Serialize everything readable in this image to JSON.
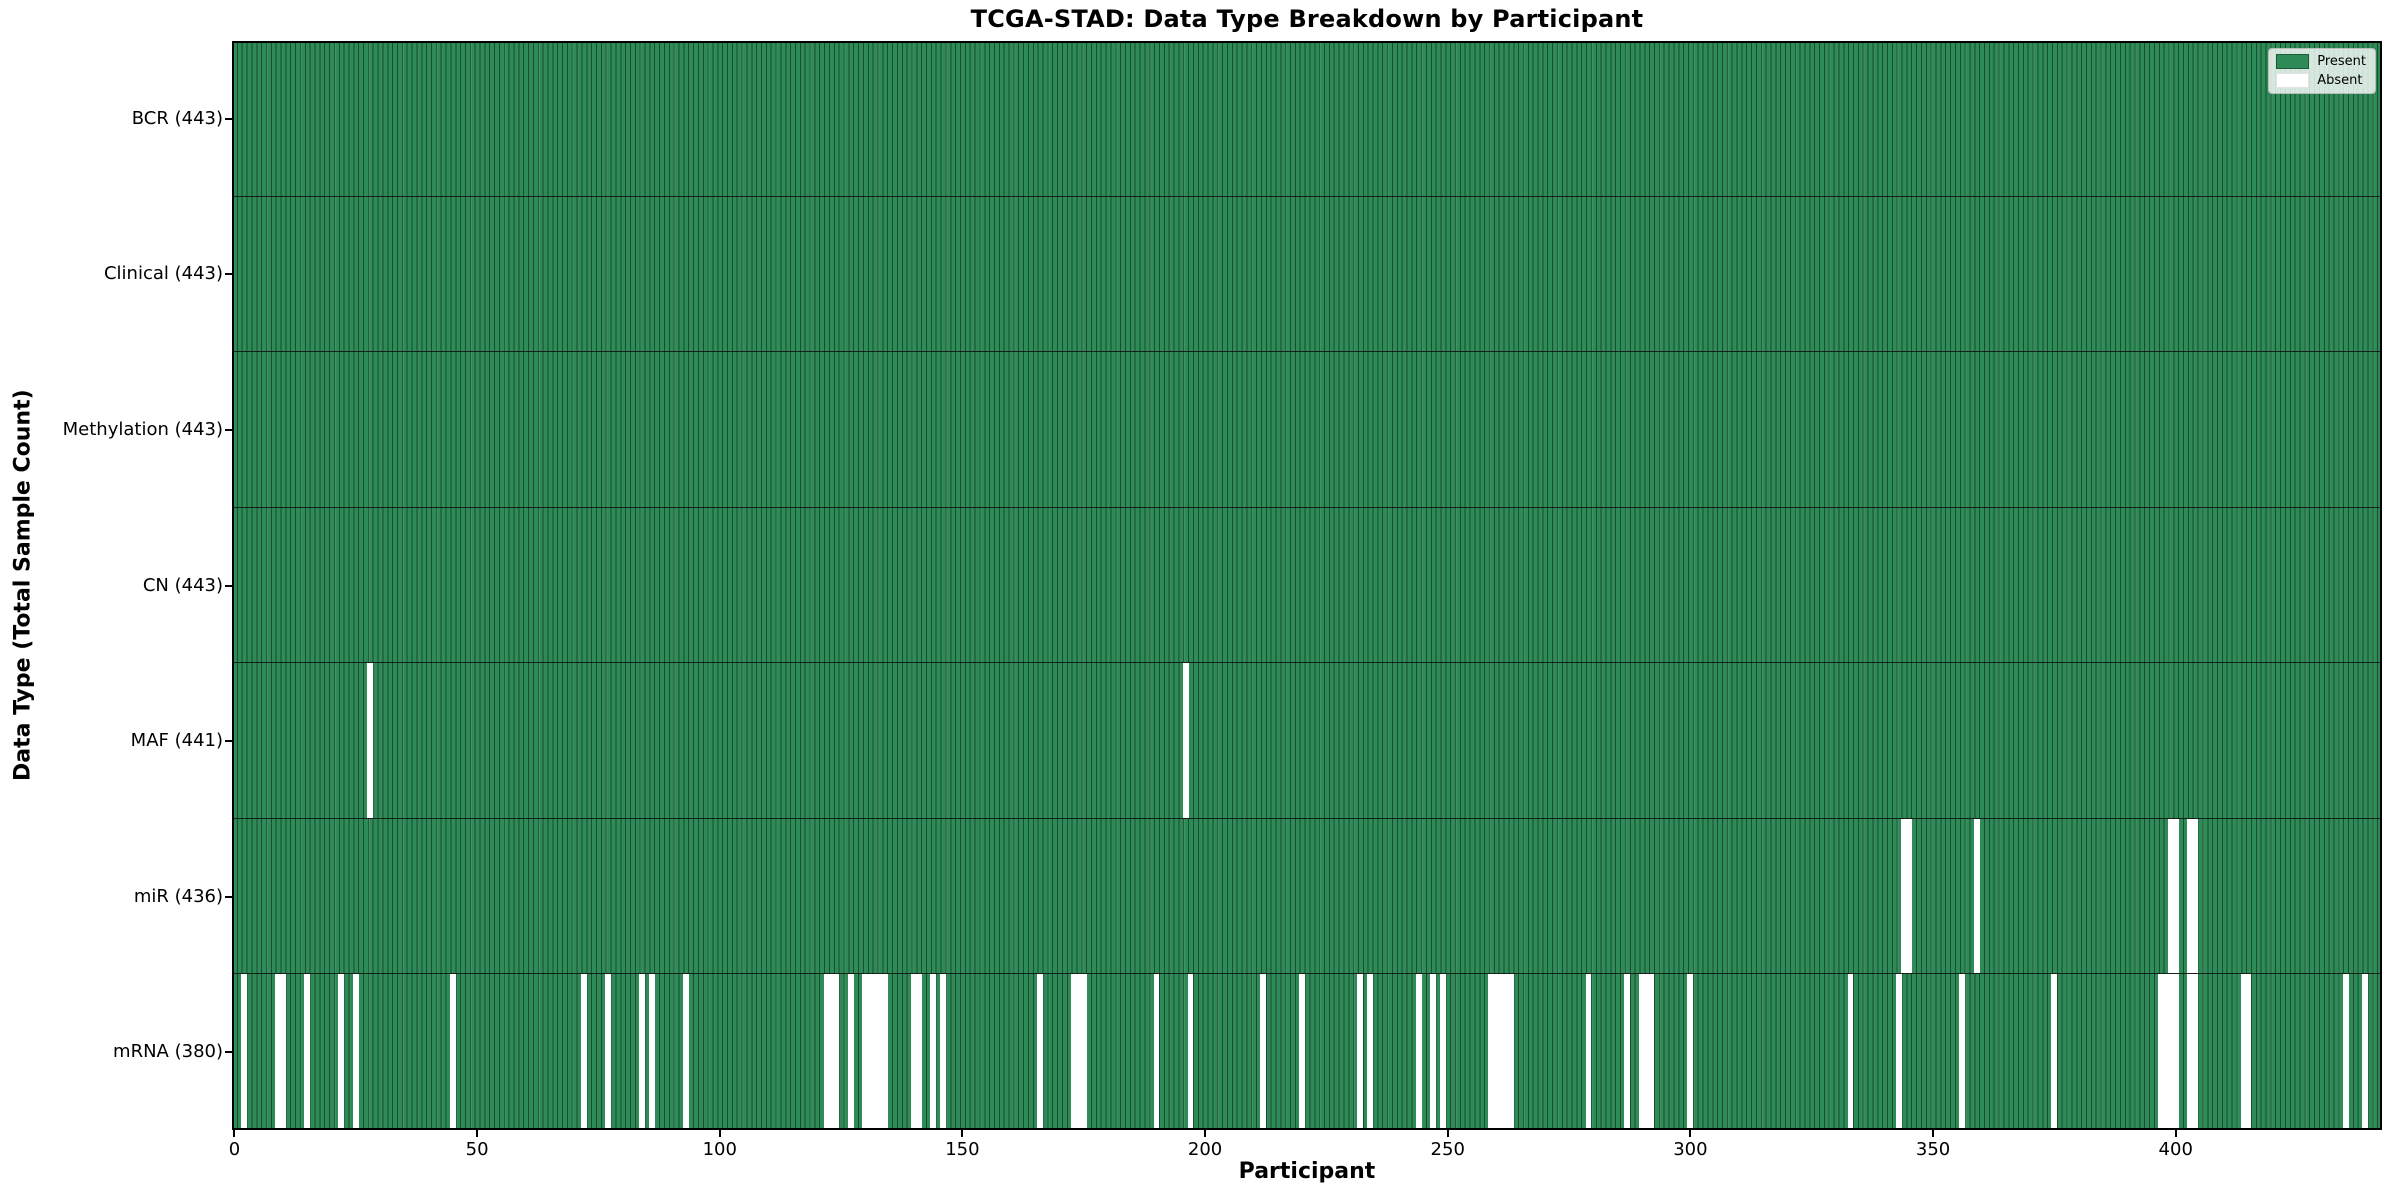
{
  "chart_data": {
    "type": "heatmap",
    "title": "TCGA-STAD: Data Type Breakdown by Participant",
    "y_axis_label": "Data Type (Total Sample Count)",
    "x_axis": {
      "label": "Participant",
      "min": 0,
      "max": 442,
      "n_participants": 443,
      "ticks": [
        0,
        50,
        100,
        150,
        200,
        250,
        300,
        350,
        400
      ]
    },
    "legend": [
      {
        "label": "Present",
        "color": "#2e8b57"
      },
      {
        "label": "Absent",
        "color": "#ffffff"
      }
    ],
    "colors": {
      "present": "#2e8b57",
      "absent": "#ffffff",
      "bar_edge": "rgba(5,25,14,0.55)"
    },
    "rows": [
      {
        "name": "BCR",
        "label": "BCR (443)",
        "present_count": 443,
        "absent_participants": []
      },
      {
        "name": "Clinical",
        "label": "Clinical (443)",
        "present_count": 443,
        "absent_participants": []
      },
      {
        "name": "Methylation",
        "label": "Methylation (443)",
        "present_count": 443,
        "absent_participants": []
      },
      {
        "name": "CN",
        "label": "CN (443)",
        "present_count": 443,
        "absent_participants": []
      },
      {
        "name": "MAF",
        "label": "MAF (441)",
        "present_count": 441,
        "absent_participants": [
          28,
          196
        ]
      },
      {
        "name": "miR",
        "label": "miR (436)",
        "present_count": 436,
        "absent_participants": [
          344,
          345,
          359,
          399,
          400,
          403,
          404
        ]
      },
      {
        "name": "mRNA",
        "label": "mRNA (380)",
        "present_count": 380,
        "absent_participants": [
          2,
          9,
          10,
          15,
          22,
          25,
          45,
          72,
          77,
          84,
          86,
          93,
          122,
          123,
          124,
          127,
          130,
          131,
          132,
          133,
          134,
          140,
          141,
          144,
          146,
          166,
          173,
          174,
          175,
          190,
          197,
          212,
          220,
          232,
          234,
          244,
          247,
          249,
          259,
          260,
          261,
          262,
          263,
          279,
          287,
          290,
          291,
          292,
          300,
          333,
          343,
          356,
          375,
          397,
          398,
          399,
          400,
          403,
          404,
          414,
          415,
          435,
          439
        ]
      }
    ]
  }
}
